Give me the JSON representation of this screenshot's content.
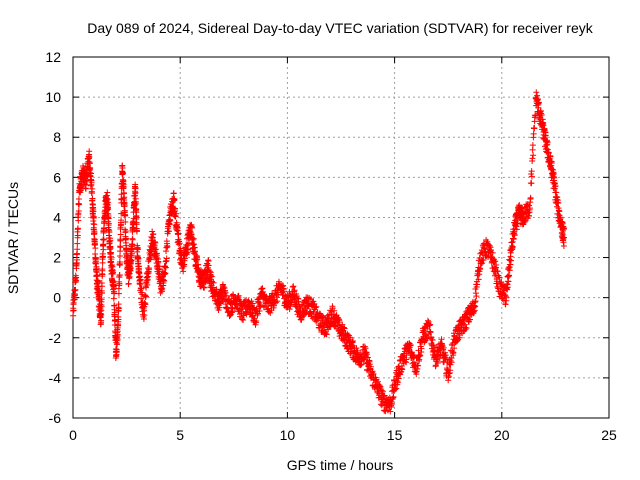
{
  "chart_data": {
    "type": "scatter",
    "title": "Day 089 of 2024, Sidereal Day-to-day VTEC variation (SDTVAR) for receiver reyk",
    "xlabel": "GPS time / hours",
    "ylabel": "SDTVAR / TECUs",
    "xlim": [
      0,
      25
    ],
    "ylim": [
      -6,
      12
    ],
    "xticks": [
      0,
      5,
      10,
      15,
      20,
      25
    ],
    "yticks": [
      -6,
      -4,
      -2,
      0,
      2,
      4,
      6,
      8,
      10,
      12
    ],
    "grid": true,
    "marker": "+",
    "series": [
      {
        "name": "SDTVAR",
        "color": "#ff0000",
        "points": [
          [
            0.0,
            -0.8
          ],
          [
            0.15,
            1.2
          ],
          [
            0.3,
            5.5
          ],
          [
            0.45,
            6.2
          ],
          [
            0.6,
            5.8
          ],
          [
            0.75,
            7.0
          ],
          [
            0.9,
            5.0
          ],
          [
            1.0,
            3.0
          ],
          [
            1.1,
            1.0
          ],
          [
            1.2,
            0.0
          ],
          [
            1.3,
            -1.2
          ],
          [
            1.4,
            2.5
          ],
          [
            1.5,
            4.5
          ],
          [
            1.6,
            4.8
          ],
          [
            1.7,
            3.0
          ],
          [
            1.8,
            1.5
          ],
          [
            1.9,
            0.5
          ],
          [
            2.0,
            -2.8
          ],
          [
            2.1,
            -1.5
          ],
          [
            2.2,
            2.5
          ],
          [
            2.3,
            6.5
          ],
          [
            2.4,
            4.5
          ],
          [
            2.5,
            2.0
          ],
          [
            2.6,
            1.0
          ],
          [
            2.7,
            1.8
          ],
          [
            2.8,
            3.5
          ],
          [
            2.9,
            5.5
          ],
          [
            3.0,
            2.5
          ],
          [
            3.1,
            1.0
          ],
          [
            3.3,
            -0.8
          ],
          [
            3.5,
            1.5
          ],
          [
            3.7,
            3.0
          ],
          [
            3.9,
            2.0
          ],
          [
            4.1,
            0.5
          ],
          [
            4.3,
            1.5
          ],
          [
            4.5,
            4.0
          ],
          [
            4.7,
            4.8
          ],
          [
            4.9,
            3.0
          ],
          [
            5.1,
            1.5
          ],
          [
            5.3,
            2.5
          ],
          [
            5.5,
            3.5
          ],
          [
            5.7,
            2.0
          ],
          [
            5.9,
            1.0
          ],
          [
            6.1,
            0.8
          ],
          [
            6.3,
            1.5
          ],
          [
            6.5,
            0.5
          ],
          [
            6.8,
            -0.2
          ],
          [
            7.0,
            0.3
          ],
          [
            7.3,
            -0.5
          ],
          [
            7.6,
            0.0
          ],
          [
            7.9,
            -0.8
          ],
          [
            8.2,
            -0.3
          ],
          [
            8.5,
            -1.0
          ],
          [
            8.8,
            0.2
          ],
          [
            9.1,
            -0.5
          ],
          [
            9.4,
            0.0
          ],
          [
            9.7,
            0.5
          ],
          [
            10.0,
            -0.3
          ],
          [
            10.3,
            0.2
          ],
          [
            10.6,
            -0.8
          ],
          [
            10.9,
            -0.3
          ],
          [
            11.2,
            -0.6
          ],
          [
            11.5,
            -1.2
          ],
          [
            11.8,
            -1.5
          ],
          [
            12.1,
            -0.8
          ],
          [
            12.4,
            -1.5
          ],
          [
            12.7,
            -2.0
          ],
          [
            13.0,
            -2.5
          ],
          [
            13.3,
            -3.0
          ],
          [
            13.6,
            -2.8
          ],
          [
            13.9,
            -3.8
          ],
          [
            14.2,
            -4.5
          ],
          [
            14.5,
            -5.2
          ],
          [
            14.8,
            -5.3
          ],
          [
            15.1,
            -4.0
          ],
          [
            15.4,
            -3.0
          ],
          [
            15.7,
            -2.5
          ],
          [
            16.0,
            -3.5
          ],
          [
            16.3,
            -2.0
          ],
          [
            16.6,
            -1.5
          ],
          [
            16.9,
            -3.0
          ],
          [
            17.2,
            -2.5
          ],
          [
            17.5,
            -3.8
          ],
          [
            17.8,
            -2.0
          ],
          [
            18.1,
            -1.5
          ],
          [
            18.4,
            -1.0
          ],
          [
            18.7,
            -0.5
          ],
          [
            19.0,
            2.0
          ],
          [
            19.3,
            2.5
          ],
          [
            19.6,
            1.8
          ],
          [
            19.9,
            0.5
          ],
          [
            20.2,
            0.0
          ],
          [
            20.4,
            2.0
          ],
          [
            20.6,
            3.5
          ],
          [
            20.8,
            4.2
          ],
          [
            21.0,
            4.0
          ],
          [
            21.3,
            4.5
          ],
          [
            21.6,
            10.0
          ],
          [
            21.8,
            9.0
          ],
          [
            22.0,
            8.0
          ],
          [
            22.2,
            7.0
          ],
          [
            22.4,
            6.0
          ],
          [
            22.6,
            4.5
          ],
          [
            22.8,
            3.5
          ],
          [
            22.9,
            3.0
          ]
        ]
      }
    ]
  }
}
